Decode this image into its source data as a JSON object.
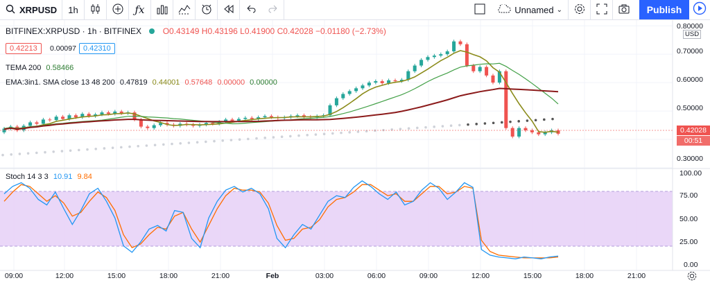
{
  "toolbar": {
    "symbol": "XRPUSD",
    "interval": "1h",
    "layout_name": "Unnamed",
    "publish_label": "Publish",
    "icons": [
      "candles-icon",
      "add-icon",
      "indicators-icon",
      "bars-icon",
      "compare-icon",
      "alert-icon",
      "replay-icon",
      "undo-icon",
      "redo-icon",
      "layout-icon",
      "settings-icon",
      "fullscreen-icon",
      "snapshot-icon",
      "play-icon"
    ]
  },
  "legend": {
    "title": "BITFINEX:XRPUSD · 1h · BITFINEX",
    "o": "O0.43149",
    "h": "H0.43196",
    "l": "L0.41900",
    "c": "C0.42028",
    "chg": "−0.01180 (−2.73%)",
    "bid": "0.42213",
    "spread": "0.00097",
    "ask": "0.42310",
    "tema_label": "TEMA 200",
    "tema_value": "0.58466",
    "ema_label": "EMA:3in1. SMA close 13 48 200",
    "ema_v1": "0.47819",
    "ema_v2": "0.44001",
    "ema_v3": "0.57648",
    "ema_v4": "0.00000",
    "ema_v5": "0.00000",
    "stoch_label": "Stoch 14 3 3",
    "stoch_k": "10.91",
    "stoch_d": "9.84"
  },
  "price_axis": {
    "currency": "USD",
    "ticks": [
      "0.80000",
      "0.70000",
      "0.60000",
      "0.50000",
      "0.30000"
    ],
    "last_price": "0.42028",
    "countdown": "00:51"
  },
  "stoch_axis": {
    "ticks": [
      "100.00",
      "75.00",
      "50.00",
      "25.00",
      "0.00"
    ]
  },
  "time_axis": {
    "labels": [
      "09:00",
      "12:00",
      "15:00",
      "18:00",
      "21:00",
      "Feb",
      "03:00",
      "06:00",
      "09:00",
      "12:00",
      "15:00",
      "18:00",
      "21:00"
    ]
  },
  "colors": {
    "up": "#26a69a",
    "down": "#ef5350",
    "tema": "#2e7d32",
    "sma13": "#8b8b1a",
    "sma48": "#43a047",
    "sma200": "#8b1a1a",
    "stoch_k": "#2196f3",
    "stoch_d": "#ff6d00",
    "stoch_band": "#e1bee7"
  },
  "chart_data": {
    "type": "candlestick",
    "y_range": [
      0.3,
      0.82
    ],
    "bars": [
      [
        0.425,
        0.438
      ],
      [
        0.438,
        0.445
      ],
      [
        0.445,
        0.432
      ],
      [
        0.432,
        0.448
      ],
      [
        0.448,
        0.46
      ],
      [
        0.46,
        0.455
      ],
      [
        0.455,
        0.47
      ],
      [
        0.47,
        0.468
      ],
      [
        0.468,
        0.48
      ],
      [
        0.48,
        0.472
      ],
      [
        0.472,
        0.485
      ],
      [
        0.485,
        0.478
      ],
      [
        0.478,
        0.49
      ],
      [
        0.49,
        0.482
      ],
      [
        0.482,
        0.488
      ],
      [
        0.488,
        0.495
      ],
      [
        0.495,
        0.49
      ],
      [
        0.49,
        0.498
      ],
      [
        0.498,
        0.492
      ],
      [
        0.492,
        0.495
      ],
      [
        0.495,
        0.47
      ],
      [
        0.47,
        0.445
      ],
      [
        0.445,
        0.44
      ],
      [
        0.44,
        0.45
      ],
      [
        0.45,
        0.458
      ],
      [
        0.458,
        0.452
      ],
      [
        0.452,
        0.448
      ],
      [
        0.448,
        0.455
      ],
      [
        0.455,
        0.452
      ],
      [
        0.452,
        0.448
      ],
      [
        0.448,
        0.452
      ],
      [
        0.452,
        0.458
      ],
      [
        0.458,
        0.455
      ],
      [
        0.455,
        0.462
      ],
      [
        0.462,
        0.47
      ],
      [
        0.47,
        0.466
      ],
      [
        0.466,
        0.472
      ],
      [
        0.472,
        0.476
      ],
      [
        0.476,
        0.472
      ],
      [
        0.472,
        0.478
      ],
      [
        0.478,
        0.482
      ],
      [
        0.482,
        0.478
      ],
      [
        0.478,
        0.475
      ],
      [
        0.475,
        0.478
      ],
      [
        0.478,
        0.482
      ],
      [
        0.482,
        0.485
      ],
      [
        0.485,
        0.48
      ],
      [
        0.48,
        0.478
      ],
      [
        0.478,
        0.482
      ],
      [
        0.482,
        0.485
      ],
      [
        0.485,
        0.52
      ],
      [
        0.52,
        0.545
      ],
      [
        0.545,
        0.56
      ],
      [
        0.56,
        0.57
      ],
      [
        0.57,
        0.58
      ],
      [
        0.58,
        0.59
      ],
      [
        0.59,
        0.6
      ],
      [
        0.6,
        0.605
      ],
      [
        0.605,
        0.598
      ],
      [
        0.598,
        0.608
      ],
      [
        0.608,
        0.605
      ],
      [
        0.605,
        0.61
      ],
      [
        0.61,
        0.64
      ],
      [
        0.64,
        0.66
      ],
      [
        0.66,
        0.68
      ],
      [
        0.68,
        0.69
      ],
      [
        0.69,
        0.695
      ],
      [
        0.695,
        0.7
      ],
      [
        0.7,
        0.71
      ],
      [
        0.71,
        0.745
      ],
      [
        0.745,
        0.735
      ],
      [
        0.735,
        0.66
      ],
      [
        0.66,
        0.64
      ],
      [
        0.64,
        0.655
      ],
      [
        0.655,
        0.625
      ],
      [
        0.625,
        0.6
      ],
      [
        0.6,
        0.64
      ],
      [
        0.64,
        0.44
      ],
      [
        0.44,
        0.41
      ],
      [
        0.41,
        0.44
      ],
      [
        0.44,
        0.432
      ],
      [
        0.432,
        0.425
      ],
      [
        0.425,
        0.418
      ],
      [
        0.418,
        0.425
      ],
      [
        0.425,
        0.432
      ],
      [
        0.432,
        0.42
      ]
    ],
    "tema": [
      0.46,
      0.462,
      0.464,
      0.466,
      0.468,
      0.47,
      0.472,
      0.474,
      0.476,
      0.478,
      0.48,
      0.482,
      0.484,
      0.486,
      0.488,
      0.49,
      0.492,
      0.494,
      0.496,
      0.498,
      0.5,
      0.502,
      0.504,
      0.506,
      0.508,
      0.51,
      0.512,
      0.514,
      0.516,
      0.518,
      0.52,
      0.522,
      0.524,
      0.526,
      0.528,
      0.53,
      0.532,
      0.534,
      0.536,
      0.538,
      0.54,
      0.545,
      0.55,
      0.555,
      0.56,
      0.565,
      0.57,
      0.575,
      0.58,
      0.585,
      0.59,
      0.595,
      0.6,
      0.605,
      0.61,
      0.615,
      0.62,
      0.625,
      0.63,
      0.635,
      0.64,
      0.645,
      0.645,
      0.64,
      0.63,
      0.62,
      0.61,
      0.6,
      0.595,
      0.59,
      0.585
    ],
    "stoch_k": [
      78,
      86,
      90,
      84,
      72,
      66,
      80,
      62,
      45,
      60,
      78,
      84,
      70,
      52,
      22,
      15,
      26,
      40,
      44,
      38,
      60,
      58,
      30,
      20,
      52,
      70,
      82,
      86,
      80,
      84,
      78,
      62,
      30,
      20,
      34,
      45,
      40,
      55,
      70,
      76,
      74,
      85,
      92,
      86,
      78,
      72,
      80,
      66,
      70,
      82,
      90,
      84,
      72,
      80,
      90,
      85,
      18,
      12,
      10,
      9,
      8,
      10,
      9,
      8,
      10,
      11
    ],
    "stoch_d": [
      70,
      80,
      88,
      86,
      78,
      70,
      76,
      68,
      54,
      58,
      70,
      80,
      74,
      60,
      34,
      20,
      24,
      34,
      42,
      40,
      54,
      58,
      40,
      26,
      44,
      62,
      76,
      84,
      82,
      82,
      80,
      68,
      44,
      28,
      30,
      40,
      42,
      50,
      64,
      72,
      74,
      80,
      88,
      88,
      82,
      76,
      78,
      70,
      70,
      78,
      86,
      86,
      78,
      80,
      86,
      84,
      28,
      16,
      12,
      11,
      10,
      9,
      9,
      9,
      9,
      10
    ]
  }
}
